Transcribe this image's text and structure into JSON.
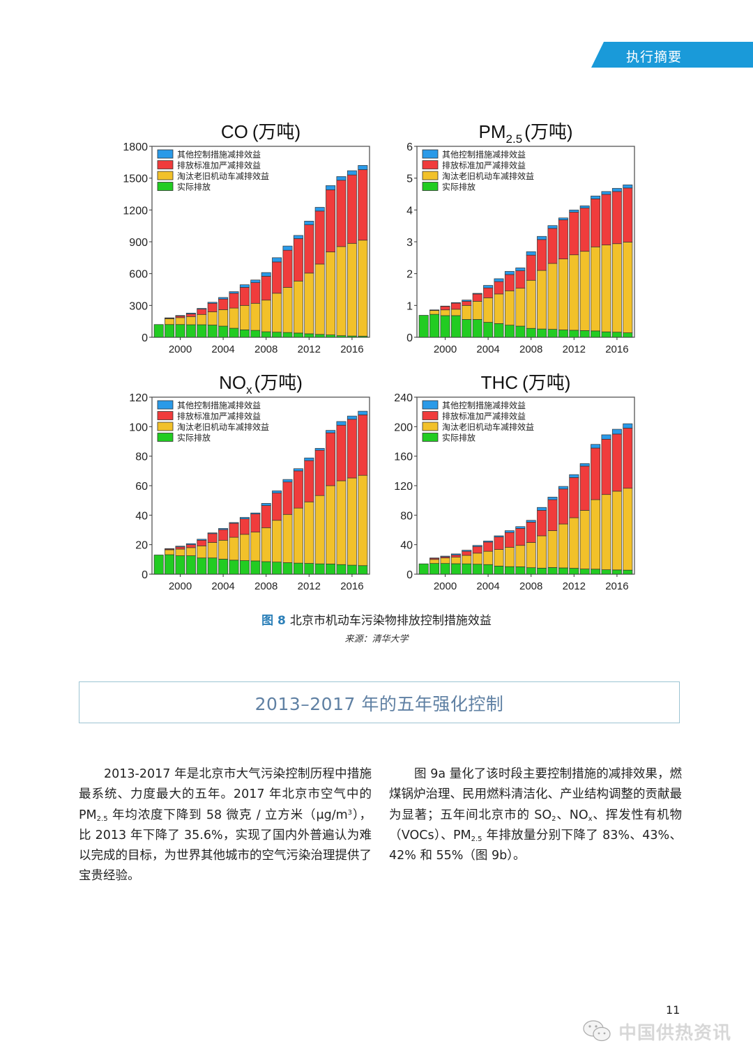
{
  "header": {
    "section_tab": "执行摘要",
    "accent": "#1a9ad9"
  },
  "figure": {
    "caption_prefix": "图 8",
    "caption": "北京市机动车污染物排放控制措施效益",
    "source": "来源：清华大学"
  },
  "chart_data": [
    {
      "type": "bar",
      "stacked": true,
      "title": "CO (万吨)",
      "title_main": "CO",
      "title_sub": "",
      "title_unit": "(万吨)",
      "xlabel": "",
      "ylabel": "",
      "ylim": [
        0,
        1800
      ],
      "yticks": [
        0,
        300,
        600,
        900,
        1200,
        1500,
        1800
      ],
      "xticks": [
        2000,
        2004,
        2008,
        2012,
        2016
      ],
      "legend_position": "top-left",
      "categories": [
        1998,
        1999,
        2000,
        2001,
        2002,
        2003,
        2004,
        2005,
        2006,
        2007,
        2008,
        2009,
        2010,
        2011,
        2012,
        2013,
        2014,
        2015,
        2016,
        2017
      ],
      "series": [
        {
          "name": "实际排放",
          "color": "#22cc22",
          "values": [
            120,
            120,
            120,
            118,
            118,
            115,
            105,
            85,
            70,
            65,
            52,
            48,
            45,
            40,
            33,
            27,
            22,
            15,
            12,
            10
          ]
        },
        {
          "name": "淘汰老旧机动车减排效益",
          "color": "#f2c12a",
          "values": [
            0,
            55,
            65,
            77,
            97,
            125,
            155,
            190,
            230,
            255,
            298,
            367,
            425,
            490,
            572,
            663,
            783,
            840,
            873,
            905
          ]
        },
        {
          "name": "排放标准加严减排效益",
          "color": "#f03c3c",
          "values": [
            0,
            5,
            15,
            25,
            50,
            80,
            100,
            140,
            170,
            195,
            225,
            295,
            350,
            400,
            455,
            500,
            585,
            625,
            645,
            665
          ]
        },
        {
          "name": "其他控制措施减排效益",
          "color": "#2a9ae8",
          "values": [
            0,
            3,
            5,
            8,
            7,
            10,
            15,
            15,
            25,
            25,
            35,
            40,
            40,
            30,
            35,
            35,
            40,
            35,
            40,
            40
          ]
        }
      ]
    },
    {
      "type": "bar",
      "stacked": true,
      "title": "PM2.5 (万吨)",
      "title_main": "PM",
      "title_sub": "2.5",
      "title_unit": "(万吨)",
      "xlabel": "",
      "ylabel": "",
      "ylim": [
        0,
        6
      ],
      "yticks": [
        0,
        1,
        2,
        3,
        4,
        5,
        6
      ],
      "xticks": [
        2000,
        2004,
        2008,
        2012,
        2016
      ],
      "legend_position": "top-left",
      "categories": [
        1998,
        1999,
        2000,
        2001,
        2002,
        2003,
        2004,
        2005,
        2006,
        2007,
        2008,
        2009,
        2010,
        2011,
        2012,
        2013,
        2014,
        2015,
        2016,
        2017
      ],
      "series": [
        {
          "name": "实际排放",
          "color": "#22cc22",
          "values": [
            0.69,
            0.72,
            0.68,
            0.68,
            0.56,
            0.56,
            0.47,
            0.43,
            0.38,
            0.35,
            0.28,
            0.26,
            0.25,
            0.23,
            0.22,
            0.21,
            0.2,
            0.17,
            0.16,
            0.14
          ]
        },
        {
          "name": "淘汰老旧机动车减排效益",
          "color": "#f2c12a",
          "values": [
            0,
            0.12,
            0.18,
            0.2,
            0.44,
            0.57,
            0.77,
            0.93,
            1.08,
            1.19,
            1.51,
            1.84,
            2.07,
            2.23,
            2.37,
            2.49,
            2.64,
            2.73,
            2.78,
            2.85
          ]
        },
        {
          "name": "排放标准加严减排效益",
          "color": "#f03c3c",
          "values": [
            0,
            0.01,
            0.11,
            0.19,
            0.13,
            0.23,
            0.31,
            0.39,
            0.51,
            0.55,
            0.79,
            0.97,
            1.1,
            1.23,
            1.34,
            1.36,
            1.51,
            1.59,
            1.64,
            1.7
          ]
        },
        {
          "name": "其他控制措施减排效益",
          "color": "#2a9ae8",
          "values": [
            0,
            0.01,
            0.01,
            0.02,
            0.04,
            0.02,
            0.08,
            0.09,
            0.1,
            0.09,
            0.11,
            0.1,
            0.09,
            0.06,
            0.07,
            0.07,
            0.09,
            0.09,
            0.1,
            0.1
          ]
        }
      ]
    },
    {
      "type": "bar",
      "stacked": true,
      "title": "NOx (万吨)",
      "title_main": "NO",
      "title_sub": "x",
      "title_unit": "(万吨)",
      "xlabel": "",
      "ylabel": "",
      "ylim": [
        0,
        120
      ],
      "yticks": [
        0,
        20,
        40,
        60,
        80,
        100,
        120
      ],
      "xticks": [
        2000,
        2004,
        2008,
        2012,
        2016
      ],
      "legend_position": "top-left",
      "categories": [
        1998,
        1999,
        2000,
        2001,
        2002,
        2003,
        2004,
        2005,
        2006,
        2007,
        2008,
        2009,
        2010,
        2011,
        2012,
        2013,
        2014,
        2015,
        2016,
        2017
      ],
      "series": [
        {
          "name": "实际排放",
          "color": "#22cc22",
          "values": [
            13,
            13.2,
            12.5,
            12.5,
            11,
            11,
            10.2,
            9.5,
            9.2,
            9,
            8.5,
            8.2,
            7.8,
            7.5,
            7.3,
            7,
            6.9,
            6.5,
            6.1,
            5.8
          ]
        },
        {
          "name": "淘汰老旧机动车减排效益",
          "color": "#f2c12a",
          "values": [
            0,
            3.3,
            4.5,
            5.5,
            8.2,
            10.5,
            12.8,
            15.5,
            17.8,
            19.5,
            23,
            28.3,
            32.7,
            37.3,
            41.7,
            46.3,
            53.1,
            56.8,
            59.1,
            61.2
          ]
        },
        {
          "name": "排放标准加严减排效益",
          "color": "#f03c3c",
          "values": [
            0,
            0.5,
            1.5,
            2,
            3.8,
            6,
            7.2,
            9.5,
            10.5,
            12.3,
            15,
            18.5,
            22,
            25.2,
            28,
            30.7,
            35.8,
            37.7,
            39.8,
            41
          ]
        },
        {
          "name": "其他控制措施减排效益",
          "color": "#2a9ae8",
          "values": [
            0,
            0.3,
            0.5,
            0.7,
            0.7,
            0.5,
            0.8,
            0.5,
            1,
            0.7,
            1.5,
            1.5,
            1.7,
            1.5,
            1.8,
            1.3,
            1.7,
            2.5,
            2.2,
            2.5
          ]
        }
      ]
    },
    {
      "type": "bar",
      "stacked": true,
      "title": "THC (万吨)",
      "title_main": "THC",
      "title_sub": "",
      "title_unit": "(万吨)",
      "xlabel": "",
      "ylabel": "",
      "ylim": [
        0,
        240
      ],
      "yticks": [
        0,
        40,
        80,
        120,
        160,
        200,
        240
      ],
      "xticks": [
        2000,
        2004,
        2008,
        2012,
        2016
      ],
      "legend_position": "top-left",
      "categories": [
        1998,
        1999,
        2000,
        2001,
        2002,
        2003,
        2004,
        2005,
        2006,
        2007,
        2008,
        2009,
        2010,
        2011,
        2012,
        2013,
        2014,
        2015,
        2016,
        2017
      ],
      "series": [
        {
          "name": "实际排放",
          "color": "#22cc22",
          "values": [
            14,
            14.5,
            14.5,
            14.2,
            14,
            13.5,
            13,
            11,
            10.2,
            10,
            8.8,
            8.2,
            9,
            8.5,
            8,
            7,
            6.8,
            6,
            5.8,
            5.5
          ]
        },
        {
          "name": "淘汰老旧机动车减排效益",
          "color": "#f2c12a",
          "values": [
            0,
            5.5,
            7.5,
            8.8,
            11.5,
            15,
            18,
            22.5,
            26.3,
            29,
            34.2,
            43.8,
            50,
            59.5,
            68.5,
            79.5,
            94.2,
            102,
            106.7,
            111
          ]
        },
        {
          "name": "排放标准加严减排效益",
          "color": "#f03c3c",
          "values": [
            0,
            1.5,
            1.5,
            3,
            5.5,
            9,
            12.5,
            17,
            20,
            23,
            27.5,
            34.5,
            42,
            47.5,
            54.5,
            60,
            70,
            75,
            77.5,
            81.5
          ]
        },
        {
          "name": "其他控制措施减排效益",
          "color": "#2a9ae8",
          "values": [
            0,
            0.5,
            1,
            1.5,
            1.5,
            1.5,
            1.5,
            1.5,
            2.5,
            2.5,
            2.5,
            4,
            3.5,
            3.5,
            4,
            3.5,
            5,
            6,
            6.5,
            6
          ]
        }
      ]
    }
  ],
  "legend_order": [
    "其他控制措施减排效益",
    "排放标准加严减排效益",
    "淘汰老旧机动车减排效益",
    "实际排放"
  ],
  "section": {
    "title": "2013–2017 年的五年强化控制"
  },
  "body": {
    "left": {
      "p1": "2013-2017 年是北京市大气污染控制历程中措施最系统、力度最大的五年。2017 年北京市空气中的 PM",
      "p1_sub": "2.5",
      "p2": " 年均浓度下降到 58 微克 / 立方米（μg/m",
      "p2_sup": "3",
      "p3": "），比 2013 年下降了 35.6%，实现了国内外普遍认为难以完成的目标，为世界其他城市的空气污染治理提供了宝贵经验。"
    },
    "right": {
      "p1": "图 9a 量化了该时段主要控制措施的减排效果，燃煤锅炉治理、民用燃料清洁化、产业结构调整的贡献最为显著；五年间北京市的 SO",
      "p1_sub": "2",
      "p2": "、NO",
      "p2_sub": "x",
      "p3": "、挥发性有机物（VOCs）、PM",
      "p3_sub": "2.5",
      "p4": " 年排放量分别下降了 83%、43%、42% 和 55%（图 9b）。"
    }
  },
  "footer": {
    "page_number": "11",
    "watermark": "中国供热资讯"
  }
}
